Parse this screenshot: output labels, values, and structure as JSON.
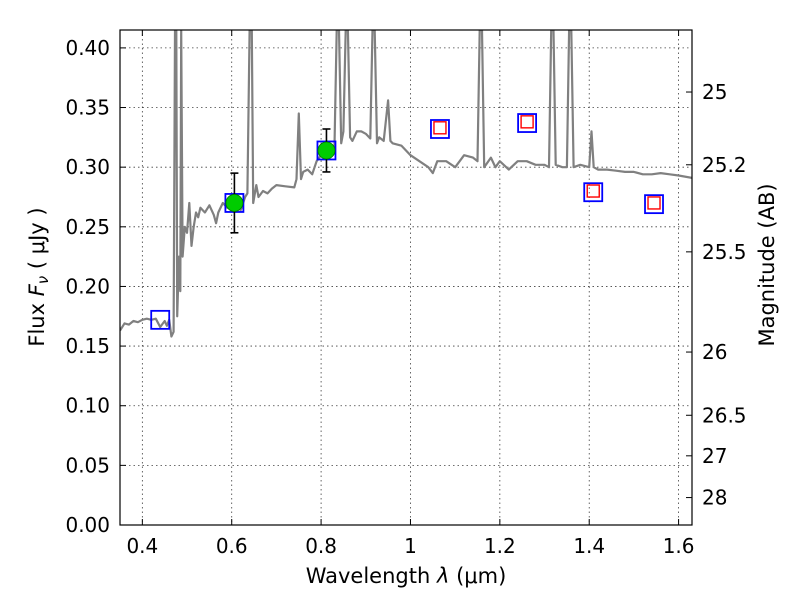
{
  "chart_data": {
    "type": "scatter",
    "xlabel": "Wavelength  λ (μm)",
    "ylabel": "Flux  F_ν ( μJy )",
    "ylabel_parts": {
      "prefix": "Flux  ",
      "symbol": "F",
      "sub": "ν",
      "unit": "  ( μJy )"
    },
    "xlabel_parts": {
      "prefix": "Wavelength  ",
      "symbol": "λ",
      "unit": " (μm)"
    },
    "y2label": "Magnitude (AB)",
    "xlim": [
      0.35,
      1.63
    ],
    "ylim": [
      0.0,
      0.415
    ],
    "grid": true,
    "x_ticks": [
      {
        "value": 0.4,
        "label": "0.4"
      },
      {
        "value": 0.6,
        "label": "0.6"
      },
      {
        "value": 0.8,
        "label": "0.8"
      },
      {
        "value": 1.0,
        "label": "1"
      },
      {
        "value": 1.2,
        "label": "1.2"
      },
      {
        "value": 1.4,
        "label": "1.4"
      },
      {
        "value": 1.6,
        "label": "1.6"
      }
    ],
    "y_ticks": [
      {
        "value": 0.0,
        "label": "0.00"
      },
      {
        "value": 0.05,
        "label": "0.05"
      },
      {
        "value": 0.1,
        "label": "0.10"
      },
      {
        "value": 0.15,
        "label": "0.15"
      },
      {
        "value": 0.2,
        "label": "0.20"
      },
      {
        "value": 0.25,
        "label": "0.25"
      },
      {
        "value": 0.3,
        "label": "0.30"
      },
      {
        "value": 0.35,
        "label": "0.35"
      },
      {
        "value": 0.4,
        "label": "0.40"
      }
    ],
    "y2_ticks": [
      {
        "flux": 0.363,
        "label": "25"
      },
      {
        "flux": 0.302,
        "label": "25.2"
      },
      {
        "flux": 0.229,
        "label": "25.5"
      },
      {
        "flux": 0.145,
        "label": "26"
      },
      {
        "flux": 0.092,
        "label": "26.5"
      },
      {
        "flux": 0.058,
        "label": "27"
      },
      {
        "flux": 0.023,
        "label": "28"
      }
    ],
    "series": [
      {
        "name": "model spectrum",
        "style": "line",
        "color": "#808080",
        "points": [
          [
            0.35,
            0.163
          ],
          [
            0.36,
            0.169
          ],
          [
            0.37,
            0.168
          ],
          [
            0.38,
            0.171
          ],
          [
            0.39,
            0.17
          ],
          [
            0.4,
            0.172
          ],
          [
            0.41,
            0.173
          ],
          [
            0.42,
            0.172
          ],
          [
            0.43,
            0.173
          ],
          [
            0.44,
            0.166
          ],
          [
            0.45,
            0.171
          ],
          [
            0.455,
            0.167
          ],
          [
            0.46,
            0.172
          ],
          [
            0.465,
            0.158
          ],
          [
            0.47,
            0.162
          ],
          [
            0.473,
            0.415
          ],
          [
            0.476,
            0.415
          ],
          [
            0.478,
            0.175
          ],
          [
            0.482,
            0.225
          ],
          [
            0.485,
            0.196
          ],
          [
            0.487,
            0.415
          ],
          [
            0.49,
            0.225
          ],
          [
            0.495,
            0.25
          ],
          [
            0.5,
            0.245
          ],
          [
            0.505,
            0.27
          ],
          [
            0.51,
            0.234
          ],
          [
            0.515,
            0.25
          ],
          [
            0.52,
            0.262
          ],
          [
            0.525,
            0.258
          ],
          [
            0.53,
            0.266
          ],
          [
            0.54,
            0.262
          ],
          [
            0.55,
            0.268
          ],
          [
            0.56,
            0.26
          ],
          [
            0.565,
            0.253
          ],
          [
            0.57,
            0.262
          ],
          [
            0.58,
            0.27
          ],
          [
            0.59,
            0.266
          ],
          [
            0.6,
            0.27
          ],
          [
            0.61,
            0.268
          ],
          [
            0.62,
            0.264
          ],
          [
            0.63,
            0.275
          ],
          [
            0.635,
            0.278
          ],
          [
            0.64,
            0.415
          ],
          [
            0.645,
            0.415
          ],
          [
            0.648,
            0.27
          ],
          [
            0.655,
            0.285
          ],
          [
            0.66,
            0.275
          ],
          [
            0.67,
            0.28
          ],
          [
            0.68,
            0.278
          ],
          [
            0.69,
            0.282
          ],
          [
            0.7,
            0.285
          ],
          [
            0.72,
            0.284
          ],
          [
            0.74,
            0.283
          ],
          [
            0.745,
            0.29
          ],
          [
            0.75,
            0.345
          ],
          [
            0.755,
            0.29
          ],
          [
            0.76,
            0.296
          ],
          [
            0.77,
            0.298
          ],
          [
            0.78,
            0.294
          ],
          [
            0.79,
            0.305
          ],
          [
            0.8,
            0.31
          ],
          [
            0.81,
            0.31
          ],
          [
            0.82,
            0.315
          ],
          [
            0.83,
            0.318
          ],
          [
            0.835,
            0.415
          ],
          [
            0.84,
            0.415
          ],
          [
            0.845,
            0.32
          ],
          [
            0.85,
            0.33
          ],
          [
            0.855,
            0.415
          ],
          [
            0.86,
            0.415
          ],
          [
            0.865,
            0.325
          ],
          [
            0.87,
            0.322
          ],
          [
            0.88,
            0.33
          ],
          [
            0.89,
            0.33
          ],
          [
            0.9,
            0.328
          ],
          [
            0.91,
            0.324
          ],
          [
            0.915,
            0.415
          ],
          [
            0.92,
            0.415
          ],
          [
            0.925,
            0.32
          ],
          [
            0.93,
            0.325
          ],
          [
            0.94,
            0.322
          ],
          [
            0.95,
            0.356
          ],
          [
            0.955,
            0.322
          ],
          [
            0.96,
            0.32
          ],
          [
            0.98,
            0.318
          ],
          [
            1.0,
            0.31
          ],
          [
            1.02,
            0.305
          ],
          [
            1.04,
            0.3
          ],
          [
            1.05,
            0.295
          ],
          [
            1.06,
            0.305
          ],
          [
            1.08,
            0.305
          ],
          [
            1.1,
            0.3
          ],
          [
            1.12,
            0.31
          ],
          [
            1.14,
            0.308
          ],
          [
            1.15,
            0.305
          ],
          [
            1.155,
            0.415
          ],
          [
            1.16,
            0.415
          ],
          [
            1.165,
            0.3
          ],
          [
            1.18,
            0.308
          ],
          [
            1.19,
            0.3
          ],
          [
            1.2,
            0.305
          ],
          [
            1.22,
            0.298
          ],
          [
            1.24,
            0.305
          ],
          [
            1.26,
            0.305
          ],
          [
            1.28,
            0.302
          ],
          [
            1.3,
            0.302
          ],
          [
            1.31,
            0.3
          ],
          [
            1.315,
            0.415
          ],
          [
            1.32,
            0.415
          ],
          [
            1.325,
            0.302
          ],
          [
            1.34,
            0.3
          ],
          [
            1.35,
            0.3
          ],
          [
            1.355,
            0.415
          ],
          [
            1.36,
            0.415
          ],
          [
            1.365,
            0.3
          ],
          [
            1.38,
            0.302
          ],
          [
            1.4,
            0.3
          ],
          [
            1.405,
            0.33
          ],
          [
            1.41,
            0.3
          ],
          [
            1.42,
            0.298
          ],
          [
            1.44,
            0.298
          ],
          [
            1.46,
            0.297
          ],
          [
            1.48,
            0.296
          ],
          [
            1.5,
            0.296
          ],
          [
            1.52,
            0.294
          ],
          [
            1.54,
            0.294
          ],
          [
            1.56,
            0.295
          ],
          [
            1.58,
            0.294
          ],
          [
            1.6,
            0.293
          ],
          [
            1.63,
            0.291
          ]
        ]
      },
      {
        "name": "blue squares",
        "style": "square",
        "color": "#0000ff",
        "points": [
          [
            0.44,
            0.172
          ],
          [
            0.606,
            0.27
          ],
          [
            0.812,
            0.314
          ],
          [
            1.066,
            0.332
          ],
          [
            1.261,
            0.337
          ],
          [
            1.409,
            0.279
          ],
          [
            1.545,
            0.269
          ]
        ]
      },
      {
        "name": "red squares",
        "style": "square-small",
        "color": "#ff0000",
        "points": [
          [
            1.066,
            0.333
          ],
          [
            1.261,
            0.338
          ],
          [
            1.409,
            0.28
          ],
          [
            1.545,
            0.27
          ]
        ]
      },
      {
        "name": "green circles",
        "style": "circle",
        "color": "#00cc00",
        "points": [
          [
            0.606,
            0.27
          ],
          [
            0.812,
            0.314
          ]
        ],
        "errors": [
          [
            0.245,
            0.295
          ],
          [
            0.296,
            0.332
          ]
        ]
      }
    ]
  }
}
